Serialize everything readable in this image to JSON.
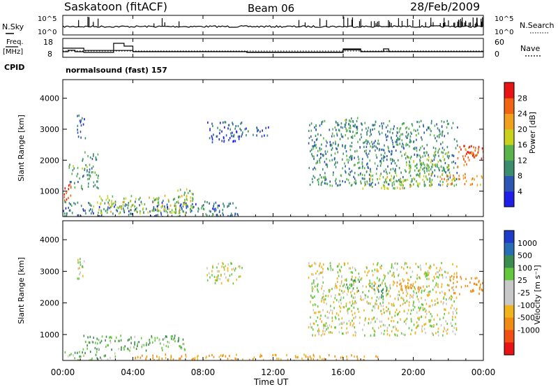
{
  "header": {
    "station": "Saskatoon (fitACF)",
    "beam": "Beam 06",
    "date": "28/Feb/2009"
  },
  "noise_panel": {
    "left_label": "N.Sky",
    "right_label": "N.Search",
    "left_ticks": [
      "10^5",
      "10^0"
    ],
    "right_ticks": [
      "10^5",
      "10^0"
    ]
  },
  "freq_panel": {
    "left_label_1": "Freq.",
    "left_label_2": "[MHz]",
    "right_label": "Nave",
    "left_ticks": [
      "18",
      "8"
    ],
    "right_ticks": [
      "60",
      "0"
    ]
  },
  "cpid": {
    "label": "CPID",
    "value": "normalsound (fast) 157"
  },
  "power_panel": {
    "ylabel": "Slant Range [km]",
    "yticks": [
      "1000",
      "2000",
      "3000",
      "4000"
    ],
    "colorbar_label": "Power [dB]",
    "colorbar_ticks": [
      "28",
      "24",
      "20",
      "16",
      "12",
      "8",
      "4"
    ],
    "colors": [
      "#1e1ee6",
      "#2d56b4",
      "#3c8c6e",
      "#5ab44b",
      "#c8d21e",
      "#f0a01e",
      "#f06414",
      "#e61414"
    ]
  },
  "velocity_panel": {
    "ylabel": "Slant Range [km]",
    "yticks": [
      "1000",
      "2000",
      "3000",
      "4000"
    ],
    "colorbar_label": "Velocity [m s⁻¹]",
    "colorbar_ticks": [
      "1000",
      "500",
      "100",
      "25",
      "-25",
      "-100",
      "-500",
      "-1000"
    ],
    "colors": [
      "#1e3cc8",
      "#286eb4",
      "#3c8c50",
      "#64c83c",
      "#c8c8c8",
      "#c8c8c8",
      "#f0b41e",
      "#f08c14",
      "#f05014",
      "#e61414"
    ]
  },
  "x_axis": {
    "ticks": [
      "00:00",
      "04:00",
      "08:00",
      "12:00",
      "16:00",
      "20:00",
      "00:00"
    ],
    "label": "Time UT"
  },
  "chart_data": {
    "type": "heatmap",
    "x_range_hours": [
      0,
      24
    ],
    "y_range_km": [
      180,
      4600
    ],
    "freq_mhz_steps": [
      [
        0,
        12
      ],
      [
        0.3,
        13
      ],
      [
        0.7,
        12
      ],
      [
        1.2,
        11.5
      ],
      [
        2.9,
        18
      ],
      [
        3.5,
        16
      ],
      [
        4.0,
        12
      ],
      [
        9.0,
        12
      ],
      [
        10.5,
        11.5
      ],
      [
        16.0,
        14
      ],
      [
        17.0,
        12
      ],
      [
        18.3,
        14
      ],
      [
        18.6,
        12
      ],
      [
        24,
        12
      ]
    ],
    "nave_steps": [
      [
        0,
        30
      ],
      [
        1.2,
        22
      ],
      [
        4.0,
        18
      ],
      [
        10.5,
        16
      ],
      [
        16.0,
        24
      ],
      [
        17.0,
        18
      ],
      [
        24,
        22
      ]
    ],
    "freq_reference_mhz": 12.5,
    "power_db_blobs": [
      {
        "t": [
          0.0,
          0.5
        ],
        "r": [
          700,
          1400
        ],
        "db": 28
      },
      {
        "t": [
          0.3,
          2.0
        ],
        "r": [
          1100,
          1900
        ],
        "db": 12
      },
      {
        "t": [
          1.0,
          2.0
        ],
        "r": [
          2000,
          2300
        ],
        "db": 10
      },
      {
        "t": [
          0.8,
          1.3
        ],
        "r": [
          2700,
          3500
        ],
        "db": 6
      },
      {
        "t": [
          0.0,
          10.0
        ],
        "r": [
          200,
          700
        ],
        "db": 8
      },
      {
        "t": [
          1.5,
          7.5
        ],
        "r": [
          300,
          900
        ],
        "db": 16
      },
      {
        "t": [
          6.5,
          7.5
        ],
        "r": [
          800,
          1100
        ],
        "db": 14
      },
      {
        "t": [
          8.2,
          10.2
        ],
        "r": [
          2600,
          3300
        ],
        "db": 6
      },
      {
        "t": [
          10.0,
          11.8
        ],
        "r": [
          2800,
          3100
        ],
        "db": 6
      },
      {
        "t": [
          14.0,
          22.5
        ],
        "r": [
          1200,
          3300
        ],
        "db": 10
      },
      {
        "t": [
          16.0,
          16.8
        ],
        "r": [
          2800,
          3400
        ],
        "db": 12
      },
      {
        "t": [
          17.0,
          21.0
        ],
        "r": [
          1100,
          1600
        ],
        "db": 16
      },
      {
        "t": [
          19.5,
          22.0
        ],
        "r": [
          1700,
          2300
        ],
        "db": 14
      },
      {
        "t": [
          21.5,
          24.0
        ],
        "r": [
          1200,
          1600
        ],
        "db": 22
      },
      {
        "t": [
          22.5,
          24.0
        ],
        "r": [
          1800,
          2500
        ],
        "db": 26
      },
      {
        "t": [
          23.0,
          24.0
        ],
        "r": [
          2200,
          2500
        ],
        "db": 28
      }
    ],
    "velocity_ms_blobs": [
      {
        "t": [
          0.0,
          3.0
        ],
        "r": [
          200,
          500
        ],
        "v": 60
      },
      {
        "t": [
          1.0,
          7.0
        ],
        "r": [
          500,
          1000
        ],
        "v": 80
      },
      {
        "t": [
          4.0,
          18.0
        ],
        "r": [
          200,
          400
        ],
        "v": -120
      },
      {
        "t": [
          0.8,
          1.3
        ],
        "r": [
          2700,
          3500
        ],
        "v": 30
      },
      {
        "t": [
          8.2,
          10.2
        ],
        "r": [
          2600,
          3300
        ],
        "v": 0
      },
      {
        "t": [
          14.0,
          22.5
        ],
        "r": [
          1000,
          3300
        ],
        "v": 0
      },
      {
        "t": [
          16.0,
          17.0
        ],
        "r": [
          2400,
          2800
        ],
        "v": 120
      },
      {
        "t": [
          17.5,
          18.5
        ],
        "r": [
          2200,
          2600
        ],
        "v": 300
      },
      {
        "t": [
          19.0,
          20.5
        ],
        "r": [
          2400,
          2700
        ],
        "v": -200
      },
      {
        "t": [
          22.0,
          24.0
        ],
        "r": [
          2300,
          2900
        ],
        "v": -200
      }
    ]
  }
}
